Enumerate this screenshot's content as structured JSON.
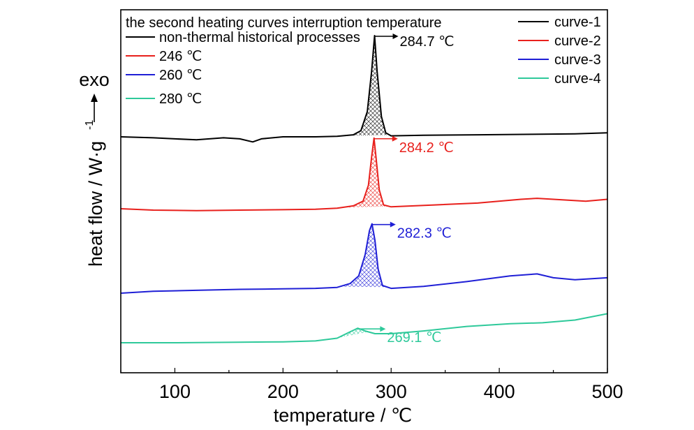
{
  "chart_data": {
    "type": "line",
    "xlabel": "temperature / ℃",
    "ylabel": "heat flow / W·g",
    "ylabel_superscript": "-1",
    "exo_label": "exo",
    "xlim": [
      50,
      500
    ],
    "xticks": [
      100,
      200,
      300,
      400,
      500
    ],
    "y_values_shown": false,
    "legend_left": {
      "title": "the second heating curves interruption temperature",
      "entries": [
        {
          "label": "non-thermal historical processes",
          "color": "#000000"
        },
        {
          "label": "246 ℃",
          "color": "#e8201c"
        },
        {
          "label": "260 ℃",
          "color": "#1f1fd6"
        },
        {
          "label": "280 ℃",
          "color": "#2ec99a"
        }
      ],
      "placement": "top-left"
    },
    "legend_right": {
      "entries": [
        {
          "label": "curve-1",
          "color": "#000000"
        },
        {
          "label": "curve-2",
          "color": "#e8201c"
        },
        {
          "label": "curve-3",
          "color": "#1f1fd6"
        },
        {
          "label": "curve-4",
          "color": "#2ec99a"
        }
      ],
      "placement": "top-right"
    },
    "series": [
      {
        "name": "curve-1",
        "color": "#000000",
        "peak_label": "284.7 ℃",
        "peak_x": 284.7,
        "peak_height": 1.0,
        "points": [
          [
            50,
            0.0
          ],
          [
            80,
            -0.01
          ],
          [
            100,
            -0.02
          ],
          [
            120,
            -0.03
          ],
          [
            145,
            -0.01
          ],
          [
            160,
            -0.02
          ],
          [
            172,
            -0.05
          ],
          [
            180,
            -0.02
          ],
          [
            200,
            0.0
          ],
          [
            230,
            0.0
          ],
          [
            250,
            0.005
          ],
          [
            265,
            0.02
          ],
          [
            272,
            0.06
          ],
          [
            278,
            0.25
          ],
          [
            282,
            0.65
          ],
          [
            284.7,
            1.0
          ],
          [
            287,
            0.65
          ],
          [
            291,
            0.2
          ],
          [
            295,
            0.04
          ],
          [
            300,
            0.01
          ],
          [
            330,
            0.015
          ],
          [
            380,
            0.02
          ],
          [
            430,
            0.025
          ],
          [
            470,
            0.03
          ],
          [
            500,
            0.04
          ]
        ]
      },
      {
        "name": "curve-2",
        "color": "#e8201c",
        "peak_label": "284.2 ℃",
        "peak_x": 284.2,
        "peak_height": 0.75,
        "points": [
          [
            50,
            0.0
          ],
          [
            80,
            -0.015
          ],
          [
            120,
            -0.02
          ],
          [
            160,
            -0.015
          ],
          [
            200,
            -0.01
          ],
          [
            230,
            -0.005
          ],
          [
            250,
            0.005
          ],
          [
            265,
            0.03
          ],
          [
            274,
            0.08
          ],
          [
            279,
            0.25
          ],
          [
            282,
            0.55
          ],
          [
            284.2,
            0.75
          ],
          [
            286,
            0.55
          ],
          [
            289,
            0.2
          ],
          [
            293,
            0.04
          ],
          [
            300,
            0.02
          ],
          [
            340,
            0.04
          ],
          [
            380,
            0.06
          ],
          [
            420,
            0.1
          ],
          [
            435,
            0.11
          ],
          [
            450,
            0.1
          ],
          [
            480,
            0.08
          ],
          [
            500,
            0.1
          ]
        ]
      },
      {
        "name": "curve-3",
        "color": "#1f1fd6",
        "peak_label": "282.3 ℃",
        "peak_x": 282.3,
        "peak_height": 0.72,
        "points": [
          [
            50,
            0.0
          ],
          [
            80,
            0.02
          ],
          [
            120,
            0.03
          ],
          [
            160,
            0.04
          ],
          [
            200,
            0.045
          ],
          [
            230,
            0.05
          ],
          [
            250,
            0.06
          ],
          [
            262,
            0.1
          ],
          [
            270,
            0.18
          ],
          [
            276,
            0.4
          ],
          [
            280,
            0.65
          ],
          [
            282.3,
            0.72
          ],
          [
            285,
            0.55
          ],
          [
            288,
            0.25
          ],
          [
            292,
            0.08
          ],
          [
            300,
            0.05
          ],
          [
            330,
            0.07
          ],
          [
            370,
            0.12
          ],
          [
            410,
            0.18
          ],
          [
            435,
            0.2
          ],
          [
            450,
            0.16
          ],
          [
            470,
            0.14
          ],
          [
            500,
            0.16
          ]
        ]
      },
      {
        "name": "curve-4",
        "color": "#2ec99a",
        "peak_label": "269.1 ℃",
        "peak_x": 269.1,
        "peak_height": 0.16,
        "points": [
          [
            50,
            0.0
          ],
          [
            100,
            0.0
          ],
          [
            150,
            0.005
          ],
          [
            200,
            0.01
          ],
          [
            230,
            0.02
          ],
          [
            250,
            0.05
          ],
          [
            262,
            0.12
          ],
          [
            269.1,
            0.16
          ],
          [
            276,
            0.13
          ],
          [
            285,
            0.1
          ],
          [
            300,
            0.1
          ],
          [
            330,
            0.13
          ],
          [
            370,
            0.18
          ],
          [
            410,
            0.21
          ],
          [
            440,
            0.22
          ],
          [
            470,
            0.25
          ],
          [
            500,
            0.32
          ]
        ]
      }
    ],
    "grid": false
  }
}
